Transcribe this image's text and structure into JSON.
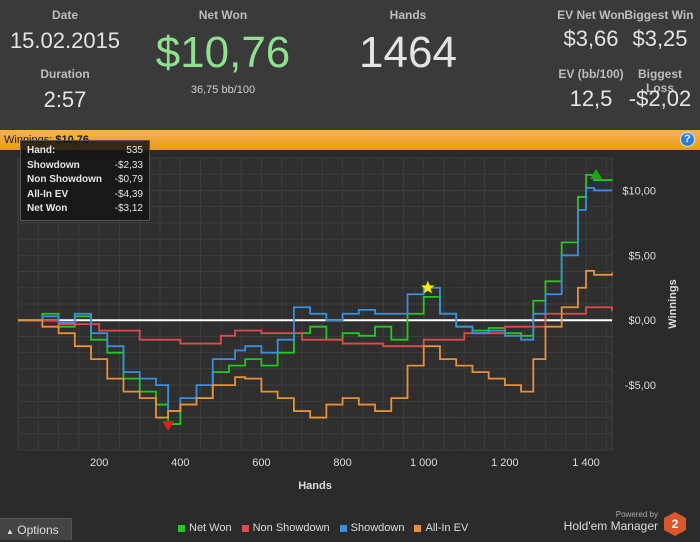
{
  "stats": {
    "date_label": "Date",
    "date_value": "15.02.2015",
    "duration_label": "Duration",
    "duration_value": "2:57",
    "netwon_label": "Net Won",
    "netwon_value": "$10,76",
    "netwon_bb": "36,75 bb/100",
    "hands_label": "Hands",
    "hands_value": "1464",
    "ev_netwon_label": "EV Net Won",
    "ev_netwon_value": "$3,66",
    "biggest_win_label": "Biggest Win",
    "biggest_win_value": "$3,25",
    "ev_bb_label": "EV (bb/100)",
    "ev_bb_value": "12,5",
    "biggest_loss_label": "Biggest Loss",
    "biggest_loss_value": "-$2,02",
    "netwon_color": "#8fe08f"
  },
  "winbar": {
    "label": "Winnings:",
    "value": "$10,76",
    "help_icon": "question-icon"
  },
  "tooltip": {
    "rows": [
      {
        "label": "Hand:",
        "value": "535"
      },
      {
        "label": "Showdown",
        "value": "-$2,33"
      },
      {
        "label": "Non Showdown",
        "value": "-$0,79"
      },
      {
        "label": "All-In EV",
        "value": "-$4,39"
      },
      {
        "label": "Net Won",
        "value": "-$3,12"
      }
    ]
  },
  "footer": {
    "options_label": "Options",
    "options_icon": "caret-up-icon",
    "powered": "Powered by",
    "brand": "Hold'em Manager",
    "brand_logo": "2"
  },
  "chart_data": {
    "type": "line",
    "xlabel": "Hands",
    "ylabel": "Winnings",
    "xlim": [
      0,
      1464
    ],
    "ylim": [
      -10,
      12.5
    ],
    "x_ticks": [
      200,
      400,
      600,
      800,
      1000,
      1200,
      1400
    ],
    "x_tick_labels": [
      "200",
      "400",
      "600",
      "800",
      "1 000",
      "1 200",
      "1 400"
    ],
    "y_ticks": [
      10,
      5,
      0,
      -5
    ],
    "y_tick_labels": [
      "$10,00",
      "$5,00",
      "$0,00",
      "-$5,00"
    ],
    "grid": true,
    "legend_position": "bottom",
    "series": [
      {
        "name": "Net Won",
        "color": "#22c922",
        "x": [
          0,
          60,
          100,
          140,
          180,
          220,
          260,
          300,
          340,
          370,
          400,
          440,
          480,
          520,
          560,
          600,
          640,
          680,
          720,
          760,
          800,
          840,
          880,
          920,
          960,
          1000,
          1040,
          1080,
          1120,
          1160,
          1200,
          1240,
          1270,
          1300,
          1340,
          1380,
          1400,
          1420,
          1464
        ],
        "y": [
          0,
          0.5,
          -0.5,
          0.3,
          -1.5,
          -2.5,
          -4.5,
          -5.5,
          -6.5,
          -8.0,
          -6.5,
          -6.0,
          -4.0,
          -3.5,
          -3.0,
          -3.5,
          -2.5,
          -1.0,
          -0.5,
          -1.5,
          -1.0,
          -1.2,
          -0.5,
          -1.5,
          0.5,
          1.8,
          0.5,
          -0.5,
          -0.8,
          -0.6,
          -1.0,
          -1.2,
          1.5,
          3.0,
          6.0,
          9.5,
          11.2,
          10.8,
          10.76
        ]
      },
      {
        "name": "Non Showdown",
        "color": "#e04a4a",
        "x": [
          0,
          100,
          200,
          300,
          400,
          500,
          535,
          600,
          700,
          800,
          900,
          1000,
          1100,
          1200,
          1300,
          1400,
          1464
        ],
        "y": [
          0,
          -0.3,
          -0.8,
          -1.5,
          -1.8,
          -1.2,
          -0.79,
          -1.0,
          -1.5,
          -1.8,
          -2.0,
          -1.5,
          -1.0,
          -0.5,
          0.5,
          1.0,
          0.7
        ]
      },
      {
        "name": "Showdown",
        "color": "#3b8fe0",
        "x": [
          0,
          60,
          100,
          140,
          180,
          220,
          260,
          300,
          340,
          370,
          400,
          440,
          480,
          535,
          560,
          600,
          640,
          680,
          720,
          760,
          800,
          840,
          880,
          920,
          960,
          1000,
          1040,
          1080,
          1120,
          1160,
          1200,
          1240,
          1270,
          1300,
          1340,
          1380,
          1400,
          1420,
          1464
        ],
        "y": [
          0,
          0.3,
          -0.2,
          0.5,
          -1.0,
          -2.0,
          -4.0,
          -4.5,
          -5.0,
          -7.0,
          -6.0,
          -5.0,
          -3.0,
          -2.33,
          -2.0,
          -2.5,
          -1.5,
          1.0,
          0.5,
          0.0,
          0.5,
          0.8,
          0.5,
          0.5,
          2.0,
          2.5,
          0.5,
          -0.5,
          -1.0,
          -0.8,
          -1.2,
          -1.5,
          0.5,
          2.0,
          5.0,
          8.5,
          10.2,
          10.0,
          10.0
        ]
      },
      {
        "name": "All-In EV",
        "color": "#e8903a",
        "x": [
          0,
          60,
          100,
          140,
          180,
          220,
          260,
          300,
          340,
          370,
          400,
          440,
          480,
          535,
          560,
          600,
          640,
          680,
          720,
          760,
          800,
          840,
          880,
          920,
          960,
          1000,
          1040,
          1080,
          1120,
          1160,
          1200,
          1240,
          1270,
          1300,
          1340,
          1380,
          1400,
          1420,
          1464
        ],
        "y": [
          0,
          -0.5,
          -1.0,
          -2.0,
          -3.0,
          -4.5,
          -5.5,
          -6.0,
          -7.5,
          -7.0,
          -6.5,
          -6.0,
          -5.0,
          -4.39,
          -4.5,
          -5.5,
          -6.0,
          -7.0,
          -7.5,
          -6.5,
          -6.0,
          -6.5,
          -7.0,
          -6.0,
          -3.5,
          -2.0,
          -3.0,
          -3.5,
          -4.0,
          -4.5,
          -5.0,
          -5.5,
          -3.0,
          -0.5,
          1.0,
          2.5,
          3.8,
          3.5,
          3.66
        ]
      }
    ],
    "markers": [
      {
        "type": "star",
        "x": 1010,
        "y": 2.5,
        "color": "#ffee00"
      },
      {
        "type": "triangle-down",
        "x": 370,
        "y": -8.0,
        "color": "#e02020"
      },
      {
        "type": "triangle-up",
        "x": 1425,
        "y": 11.2,
        "color": "#1aa51a"
      }
    ]
  }
}
